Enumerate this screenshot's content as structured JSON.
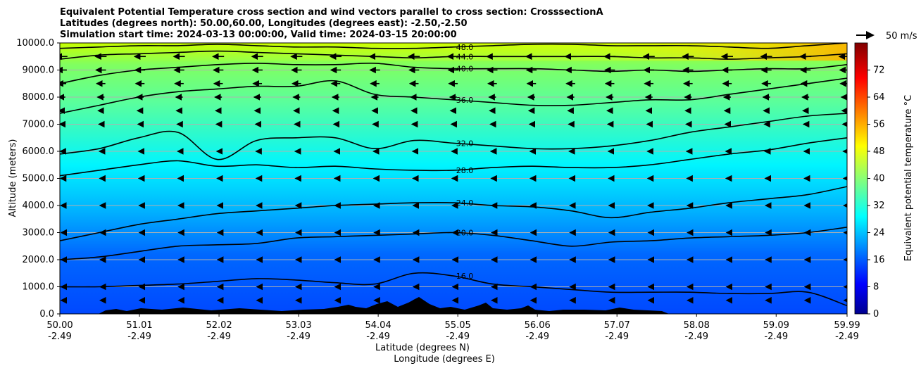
{
  "chart_data": {
    "type": "heatmap",
    "title_lines": [
      "Equivalent Potential Temperature cross section and wind vectors parallel to cross section: CrosssectionA",
      "Latitudes (degrees north): 50.00,60.00, Longitudes (degrees east): -2.50,-2.50",
      "Simulation start time: 2024-03-13 00:00:00, Valid time: 2024-03-15 20:00:00"
    ],
    "xlabel_lat": "Latitude (degrees N)",
    "xlabel_lon": "Longitude (degrees E)",
    "ylabel": "Altitude (meters)",
    "x_ticks_lat": [
      "50.00",
      "51.01",
      "52.02",
      "53.03",
      "54.04",
      "55.05",
      "56.06",
      "57.07",
      "58.08",
      "59.09",
      "59.99"
    ],
    "x_ticks_lon": [
      "-2.49",
      "-2.49",
      "-2.49",
      "-2.49",
      "-2.49",
      "-2.49",
      "-2.49",
      "-2.49",
      "-2.49",
      "-2.49",
      "-2.49"
    ],
    "xlim": [
      50.0,
      59.99
    ],
    "y_ticks": [
      "0.0",
      "1000.0",
      "2000.0",
      "3000.0",
      "4000.0",
      "5000.0",
      "6000.0",
      "7000.0",
      "8000.0",
      "9000.0",
      "10000.0"
    ],
    "ylim": [
      0,
      10000
    ],
    "grid": "horizontal",
    "colorbar": {
      "label": "Equivalent potential temperature °C",
      "ticks": [
        "0",
        "8",
        "16",
        "24",
        "32",
        "40",
        "48",
        "56",
        "64",
        "72"
      ],
      "range": [
        0,
        80
      ],
      "colormap": "jet"
    },
    "wind_key": {
      "label": "50 m/s",
      "speed": 50
    },
    "contour_levels": [
      {
        "label": "16.0",
        "alt_m": [
          1000,
          1000,
          1050,
          1100,
          1200,
          1300,
          1250,
          1150,
          1100,
          1500,
          1400,
          1100,
          1000,
          900,
          800,
          800,
          800,
          750,
          750,
          800,
          300
        ]
      },
      {
        "label": "20.0",
        "alt_m": [
          2000,
          2100,
          2300,
          2500,
          2550,
          2600,
          2800,
          2850,
          2900,
          2950,
          3000,
          2900,
          2700,
          2500,
          2650,
          2700,
          2800,
          2850,
          2900,
          3000,
          3200
        ]
      },
      {
        "label": "24.0",
        "alt_m": [
          2700,
          3000,
          3300,
          3500,
          3700,
          3800,
          3900,
          4000,
          4050,
          4100,
          4100,
          4000,
          3950,
          3800,
          3550,
          3750,
          3900,
          4100,
          4250,
          4400,
          4700
        ]
      },
      {
        "label": "28.0",
        "alt_m": [
          5100,
          5300,
          5500,
          5650,
          5450,
          5500,
          5400,
          5450,
          5350,
          5300,
          5300,
          5400,
          5450,
          5400,
          5400,
          5500,
          5700,
          5900,
          6050,
          6300,
          6500
        ]
      },
      {
        "label": "32.0",
        "alt_m": [
          5900,
          6100,
          6500,
          6700,
          5700,
          6400,
          6500,
          6500,
          6100,
          6400,
          6300,
          6200,
          6100,
          6100,
          6200,
          6400,
          6700,
          6900,
          7100,
          7300,
          7400
        ]
      },
      {
        "label": "36.0",
        "alt_m": [
          7400,
          7700,
          8000,
          8200,
          8300,
          8400,
          8400,
          8600,
          8100,
          8000,
          7900,
          7800,
          7700,
          7700,
          7800,
          7900,
          7900,
          8100,
          8300,
          8500,
          8700
        ]
      },
      {
        "label": "40.0",
        "alt_m": [
          8500,
          8800,
          9000,
          9100,
          9200,
          9250,
          9200,
          9200,
          9250,
          9100,
          9050,
          9050,
          9050,
          9000,
          8950,
          9000,
          8950,
          9000,
          9050,
          9050,
          9200
        ]
      },
      {
        "label": "44.0",
        "alt_m": [
          9400,
          9550,
          9600,
          9650,
          9700,
          9650,
          9600,
          9550,
          9500,
          9450,
          9500,
          9500,
          9500,
          9500,
          9500,
          9450,
          9450,
          9400,
          9450,
          9500,
          9600
        ]
      },
      {
        "label": "48.0",
        "alt_m": [
          9800,
          9850,
          9900,
          9900,
          9950,
          9900,
          9850,
          9850,
          9800,
          9800,
          9850,
          9900,
          9950,
          9950,
          9900,
          9900,
          9900,
          9850,
          9800,
          9900,
          10000
        ]
      }
    ],
    "wind_u_ms": [
      -18,
      -16,
      -14,
      -11,
      -9,
      -7,
      -5,
      -4,
      -3,
      -2,
      -1,
      -1,
      -0.5
    ],
    "wind_levels_m": [
      9500,
      9000,
      8500,
      8000,
      7500,
      7000,
      6000,
      5000,
      4000,
      3000,
      2000,
      1000,
      500
    ]
  }
}
